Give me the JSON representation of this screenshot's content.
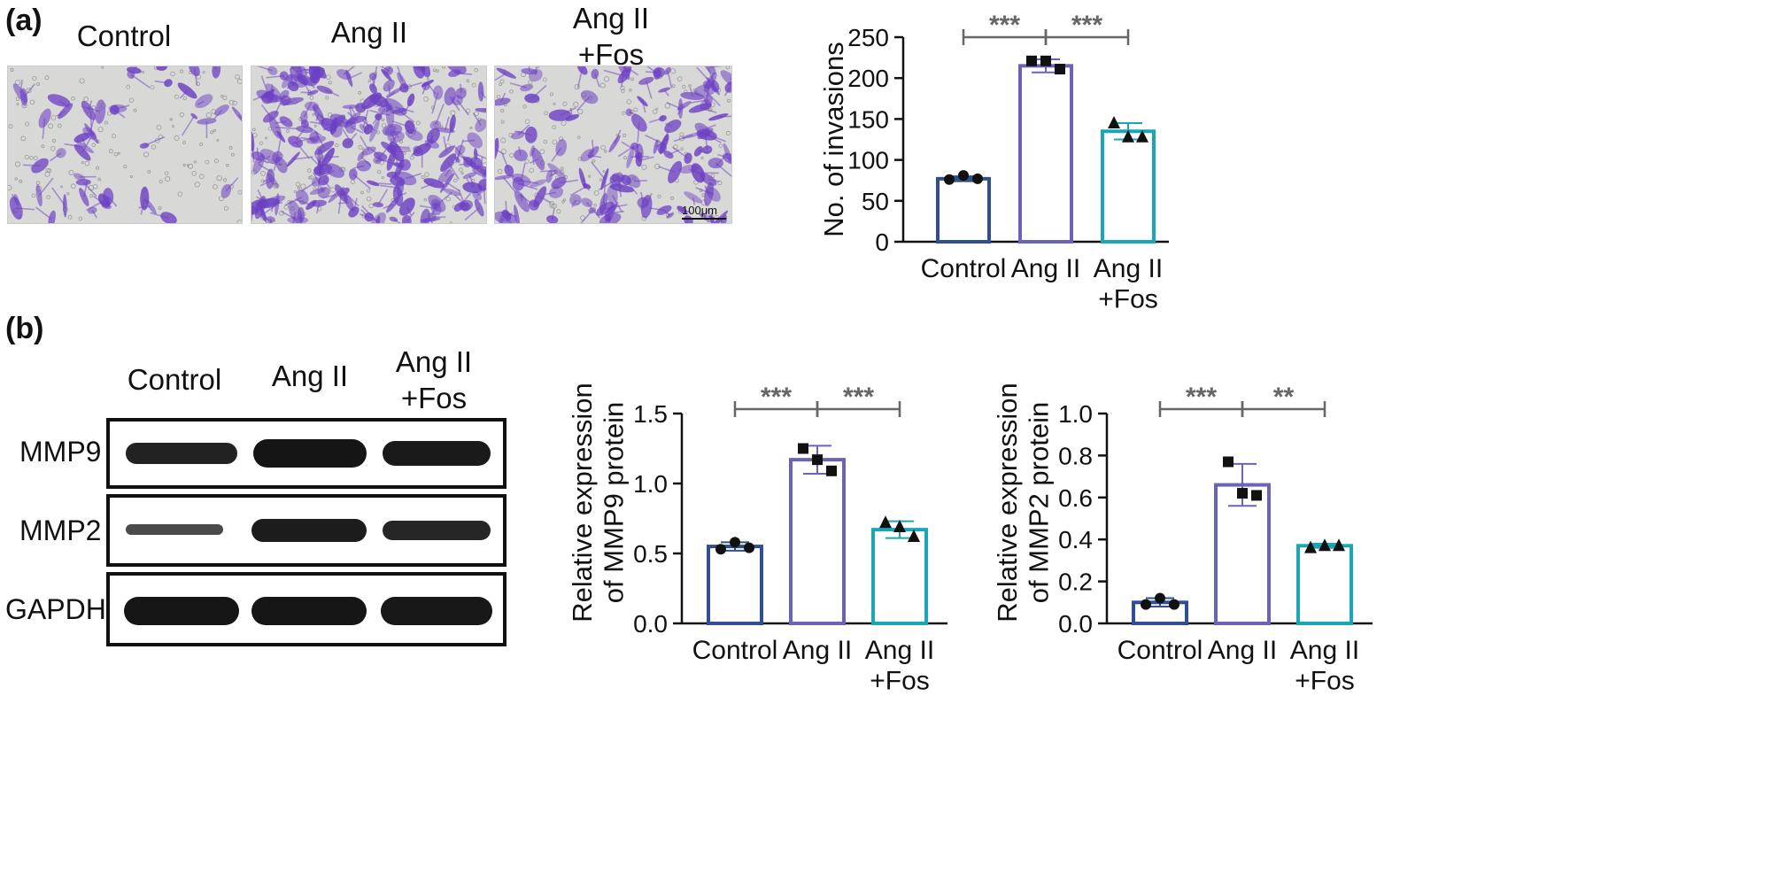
{
  "panels": {
    "a": {
      "label": "(a)",
      "image_headers": [
        "Control",
        "Ang II",
        "Ang II\n+Fos"
      ],
      "scale_bar": "100μm"
    },
    "b": {
      "label": "(b)",
      "lane_headers": [
        "Control",
        "Ang II",
        "Ang II\n+Fos"
      ],
      "rows": [
        "MMP9",
        "MMP2",
        "GAPDH"
      ]
    }
  },
  "colors": {
    "control": "#2f4f8f",
    "angii": "#6a63b8",
    "angii_fos": "#1aa6b5",
    "sig": "#666666",
    "stain": "#6b3fc4"
  },
  "chart_data": [
    {
      "id": "invasions",
      "type": "bar",
      "categories": [
        "Control",
        "Ang II",
        "Ang II\n+Fos"
      ],
      "values": [
        77,
        215,
        135
      ],
      "errors": [
        3,
        8,
        10
      ],
      "points": [
        [
          76,
          81,
          77
        ],
        [
          221,
          221,
          211
        ],
        [
          145,
          128,
          128
        ]
      ],
      "markers": [
        "circle",
        "square",
        "triangle"
      ],
      "title": "",
      "xlabel": "",
      "ylabel": "No. of invasions",
      "ylim": [
        0,
        250
      ],
      "yticks": [
        0,
        50,
        100,
        150,
        200,
        250
      ],
      "significance": [
        {
          "from": 0,
          "to": 1,
          "label": "***"
        },
        {
          "from": 1,
          "to": 2,
          "label": "***"
        }
      ]
    },
    {
      "id": "mmp9",
      "type": "bar",
      "categories": [
        "Control",
        "Ang II",
        "Ang II\n+Fos"
      ],
      "values": [
        0.55,
        1.17,
        0.67
      ],
      "errors": [
        0.03,
        0.1,
        0.06
      ],
      "points": [
        [
          0.53,
          0.58,
          0.54
        ],
        [
          1.25,
          1.17,
          1.09
        ],
        [
          0.72,
          0.69,
          0.62
        ]
      ],
      "markers": [
        "circle",
        "square",
        "triangle"
      ],
      "title": "",
      "xlabel": "",
      "ylabel": "Relative expression\nof MMP9 protein",
      "ylim": [
        0,
        1.5
      ],
      "yticks": [
        "0.0",
        "0.5",
        "1.0",
        "1.5"
      ],
      "significance": [
        {
          "from": 0,
          "to": 1,
          "label": "***"
        },
        {
          "from": 1,
          "to": 2,
          "label": "***"
        }
      ]
    },
    {
      "id": "mmp2",
      "type": "bar",
      "categories": [
        "Control",
        "Ang II",
        "Ang II\n+Fos"
      ],
      "values": [
        0.1,
        0.66,
        0.37
      ],
      "errors": [
        0.02,
        0.1,
        0.01
      ],
      "points": [
        [
          0.09,
          0.12,
          0.09
        ],
        [
          0.77,
          0.62,
          0.61
        ],
        [
          0.36,
          0.37,
          0.37
        ]
      ],
      "markers": [
        "circle",
        "square",
        "triangle"
      ],
      "title": "",
      "xlabel": "",
      "ylabel": "Relative expression\nof MMP2 protein",
      "ylim": [
        0,
        1.0
      ],
      "yticks": [
        "0.0",
        "0.2",
        "0.4",
        "0.6",
        "0.8",
        "1.0"
      ],
      "significance": [
        {
          "from": 0,
          "to": 1,
          "label": "***"
        },
        {
          "from": 1,
          "to": 2,
          "label": "**"
        }
      ]
    }
  ]
}
